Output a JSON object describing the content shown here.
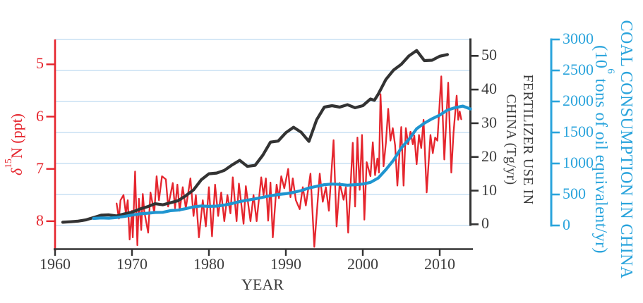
{
  "figure": {
    "x_axis": {
      "title": "YEAR",
      "ticks": [
        "1960",
        "1970",
        "1980",
        "1990",
        "2000",
        "2010"
      ]
    },
    "left_axis": {
      "title_delta": "δ",
      "title_sup": "15",
      "title_rest": "N (ppt)",
      "ticks": [
        "5",
        "6",
        "7",
        "8"
      ]
    },
    "fertilizer_axis": {
      "title_line1": "FERTILIZER USE IN",
      "title_line2": "CHINA (Tg/yr)",
      "ticks": [
        "50",
        "40",
        "30",
        "20",
        "10",
        "0"
      ]
    },
    "coal_axis": {
      "title_line1": "COAL CONSUMPTION IN CHINA",
      "title_line2_prefix": "(10",
      "title_line2_sup": "6",
      "title_line2_suffix": " tons of oil equivalent/yr)",
      "ticks": [
        "3000",
        "2500",
        "2000",
        "1500",
        "1000",
        "500",
        "0"
      ]
    },
    "colors": {
      "red": "#e5252d",
      "dark_line": "#333333",
      "text_dark": "#3d3d3d",
      "blue_line": "#1f95d0",
      "blue_axis": "#2aa4dc",
      "gridline": "#c8e1f3",
      "background": "#ffffff"
    }
  },
  "chart_data": {
    "type": "line",
    "title": "",
    "xlabel": "YEAR",
    "x_range": [
      1960,
      2014
    ],
    "grid": "horizontal light-blue lines at coal-axis tick levels",
    "legend": "none (series identified by colored axes)",
    "axes": {
      "x": {
        "ticks": [
          1960,
          1970,
          1980,
          1990,
          2000,
          2010
        ]
      },
      "left": {
        "label": "δ15N (ppt)",
        "ticks": [
          5,
          6,
          7,
          8
        ],
        "range": [
          4.5,
          8.6
        ],
        "inverted": true,
        "color": "#e5252d"
      },
      "fertilizer": {
        "label": "FERTILIZER USE IN CHINA (Tg/yr)",
        "ticks": [
          50,
          40,
          30,
          20,
          10,
          0
        ],
        "range": [
          0,
          55
        ],
        "color": "#333333"
      },
      "coal": {
        "label": "COAL CONSUMPTION IN CHINA (10^6 tons of oil equivalent/yr)",
        "ticks": [
          3000,
          2500,
          2000,
          1500,
          1000,
          500,
          0
        ],
        "range": [
          0,
          3000
        ],
        "color": "#2aa4dc"
      }
    },
    "series": [
      {
        "name": "delta15N",
        "axis": "left",
        "units": "ppt",
        "color": "#e5252d",
        "width": 2.3,
        "points": [
          [
            1968.0,
            7.66
          ],
          [
            1968.3,
            7.95
          ],
          [
            1968.5,
            7.6
          ],
          [
            1968.9,
            7.5
          ],
          [
            1969.2,
            7.85
          ],
          [
            1969.45,
            7.6
          ],
          [
            1969.7,
            8.35
          ],
          [
            1970.0,
            7.8
          ],
          [
            1970.1,
            8.31
          ],
          [
            1970.4,
            7.05
          ],
          [
            1970.7,
            8.46
          ],
          [
            1970.9,
            7.57
          ],
          [
            1971.2,
            8.17
          ],
          [
            1971.4,
            7.48
          ],
          [
            1971.6,
            7.81
          ],
          [
            1972.1,
            8.22
          ],
          [
            1972.4,
            7.45
          ],
          [
            1972.9,
            7.84
          ],
          [
            1973.2,
            7.14
          ],
          [
            1973.5,
            7.6
          ],
          [
            1973.9,
            7.14
          ],
          [
            1974.4,
            7.2
          ],
          [
            1974.7,
            7.72
          ],
          [
            1975.3,
            7.27
          ],
          [
            1975.6,
            7.75
          ],
          [
            1975.9,
            7.3
          ],
          [
            1976.2,
            7.8
          ],
          [
            1976.6,
            7.35
          ],
          [
            1977.0,
            7.75
          ],
          [
            1977.6,
            7.18
          ],
          [
            1978.0,
            7.9
          ],
          [
            1978.3,
            7.5
          ],
          [
            1978.7,
            8.31
          ],
          [
            1979.2,
            7.6
          ],
          [
            1979.6,
            8.1
          ],
          [
            1980.0,
            7.35
          ],
          [
            1980.4,
            8.29
          ],
          [
            1980.8,
            7.3
          ],
          [
            1981.2,
            7.9
          ],
          [
            1981.6,
            7.45
          ],
          [
            1982.0,
            8.0
          ],
          [
            1982.4,
            7.5
          ],
          [
            1982.8,
            7.85
          ],
          [
            1983.1,
            7.16
          ],
          [
            1983.6,
            8.0
          ],
          [
            1983.9,
            7.28
          ],
          [
            1984.5,
            8.05
          ],
          [
            1984.8,
            7.33
          ],
          [
            1985.4,
            8.0
          ],
          [
            1985.8,
            7.5
          ],
          [
            1986.2,
            8.0
          ],
          [
            1986.8,
            7.16
          ],
          [
            1987.1,
            7.5
          ],
          [
            1987.4,
            7.18
          ],
          [
            1987.7,
            7.99
          ],
          [
            1988.0,
            7.26
          ],
          [
            1988.3,
            8.31
          ],
          [
            1988.8,
            7.3
          ],
          [
            1989.1,
            7.56
          ],
          [
            1989.4,
            7.14
          ],
          [
            1989.8,
            7.37
          ],
          [
            1990.3,
            7.0
          ],
          [
            1990.6,
            7.54
          ],
          [
            1990.9,
            7.18
          ],
          [
            1991.3,
            7.6
          ],
          [
            1991.8,
            7.77
          ],
          [
            1992.2,
            7.35
          ],
          [
            1992.6,
            7.7
          ],
          [
            1993.2,
            7.09
          ],
          [
            1993.7,
            8.49
          ],
          [
            1994.4,
            7.09
          ],
          [
            1994.8,
            7.63
          ],
          [
            1995.2,
            7.35
          ],
          [
            1995.6,
            7.8
          ],
          [
            1996.2,
            6.45
          ],
          [
            1996.6,
            8.1
          ],
          [
            1997.0,
            7.27
          ],
          [
            1997.5,
            7.59
          ],
          [
            1997.8,
            7.35
          ],
          [
            1998.1,
            8.22
          ],
          [
            1998.7,
            6.5
          ],
          [
            1999.0,
            7.72
          ],
          [
            1999.3,
            6.4
          ],
          [
            1999.6,
            7.4
          ],
          [
            1999.9,
            6.35
          ],
          [
            2000.2,
            7.97
          ],
          [
            2000.5,
            6.87
          ],
          [
            2001.0,
            7.14
          ],
          [
            2001.3,
            6.49
          ],
          [
            2001.6,
            7.12
          ],
          [
            2001.9,
            6.8
          ],
          [
            2002.1,
            7.07
          ],
          [
            2002.3,
            5.57
          ],
          [
            2002.7,
            6.95
          ],
          [
            2003.0,
            6.51
          ],
          [
            2003.3,
            5.85
          ],
          [
            2003.6,
            6.46
          ],
          [
            2003.9,
            6.22
          ],
          [
            2004.2,
            6.55
          ],
          [
            2004.5,
            7.32
          ],
          [
            2005.0,
            6.2
          ],
          [
            2005.3,
            7.32
          ],
          [
            2005.6,
            6.22
          ],
          [
            2005.9,
            6.53
          ],
          [
            2006.2,
            6.29
          ],
          [
            2006.5,
            6.53
          ],
          [
            2006.7,
            6.36
          ],
          [
            2007.0,
            6.91
          ],
          [
            2007.3,
            6.35
          ],
          [
            2007.6,
            6.6
          ],
          [
            2007.9,
            6.06
          ],
          [
            2008.3,
            7.45
          ],
          [
            2008.8,
            6.35
          ],
          [
            2009.1,
            6.7
          ],
          [
            2009.4,
            6.4
          ],
          [
            2009.7,
            6.46
          ],
          [
            2010.2,
            5.23
          ],
          [
            2010.6,
            6.82
          ],
          [
            2011.1,
            5.35
          ],
          [
            2011.5,
            7.07
          ],
          [
            2011.8,
            6.3
          ],
          [
            2012.2,
            5.6
          ],
          [
            2012.4,
            6.06
          ],
          [
            2012.6,
            5.9
          ],
          [
            2012.8,
            6.05
          ]
        ]
      },
      {
        "name": "fertilizer_use",
        "axis": "fertilizer",
        "units": "Tg/yr",
        "color": "#333333",
        "width": 4.2,
        "points": [
          [
            1961,
            0.6
          ],
          [
            1962,
            0.75
          ],
          [
            1963,
            0.95
          ],
          [
            1964,
            1.3
          ],
          [
            1965,
            2.0
          ],
          [
            1966,
            2.7
          ],
          [
            1967,
            2.8
          ],
          [
            1968,
            2.5
          ],
          [
            1969,
            3.1
          ],
          [
            1970,
            3.6
          ],
          [
            1971,
            4.5
          ],
          [
            1972,
            5.2
          ],
          [
            1973,
            6.1
          ],
          [
            1974,
            5.8
          ],
          [
            1975,
            6.4
          ],
          [
            1976,
            7.0
          ],
          [
            1977,
            8.5
          ],
          [
            1978,
            10.2
          ],
          [
            1979,
            13.2
          ],
          [
            1980,
            15.0
          ],
          [
            1981,
            15.2
          ],
          [
            1982,
            16.0
          ],
          [
            1983,
            17.6
          ],
          [
            1984,
            19.0
          ],
          [
            1985,
            17.2
          ],
          [
            1986,
            17.5
          ],
          [
            1987,
            20.5
          ],
          [
            1988,
            24.4
          ],
          [
            1989,
            24.7
          ],
          [
            1990,
            27.2
          ],
          [
            1991,
            28.8
          ],
          [
            1992,
            27.3
          ],
          [
            1993,
            24.6
          ],
          [
            1994,
            31.0
          ],
          [
            1995,
            34.8
          ],
          [
            1996,
            35.2
          ],
          [
            1997,
            34.8
          ],
          [
            1998,
            35.5
          ],
          [
            1999,
            34.6
          ],
          [
            2000,
            35.2
          ],
          [
            2001,
            37.2
          ],
          [
            2001.5,
            36.8
          ],
          [
            2002,
            38.6
          ],
          [
            2003,
            43.0
          ],
          [
            2004,
            45.8
          ],
          [
            2005,
            47.5
          ],
          [
            2006,
            50.0
          ],
          [
            2007,
            51.6
          ],
          [
            2008,
            48.6
          ],
          [
            2009,
            48.7
          ],
          [
            2010,
            49.9
          ],
          [
            2011,
            50.4
          ]
        ]
      },
      {
        "name": "coal_consumption",
        "axis": "coal",
        "units": "10^6 tons of oil equivalent/yr",
        "color": "#1f95d0",
        "width": 4.2,
        "points": [
          [
            1965,
            114
          ],
          [
            1966,
            122
          ],
          [
            1967,
            118
          ],
          [
            1968,
            128
          ],
          [
            1969,
            145
          ],
          [
            1970,
            168
          ],
          [
            1971,
            188
          ],
          [
            1972,
            198
          ],
          [
            1973,
            210
          ],
          [
            1974,
            212
          ],
          [
            1975,
            240
          ],
          [
            1976,
            248
          ],
          [
            1977,
            272
          ],
          [
            1978,
            300
          ],
          [
            1979,
            315
          ],
          [
            1980,
            308
          ],
          [
            1981,
            312
          ],
          [
            1982,
            330
          ],
          [
            1983,
            355
          ],
          [
            1984,
            385
          ],
          [
            1985,
            408
          ],
          [
            1986,
            430
          ],
          [
            1987,
            455
          ],
          [
            1988,
            480
          ],
          [
            1989,
            500
          ],
          [
            1990,
            512
          ],
          [
            1991,
            535
          ],
          [
            1992,
            562
          ],
          [
            1993,
            605
          ],
          [
            1994,
            632
          ],
          [
            1995,
            658
          ],
          [
            1996,
            668
          ],
          [
            1997,
            662
          ],
          [
            1998,
            650
          ],
          [
            1999,
            658
          ],
          [
            2000,
            668
          ],
          [
            2001,
            695
          ],
          [
            2002,
            765
          ],
          [
            2003,
            900
          ],
          [
            2004,
            1055
          ],
          [
            2005,
            1250
          ],
          [
            2006,
            1390
          ],
          [
            2007,
            1560
          ],
          [
            2008,
            1650
          ],
          [
            2009,
            1720
          ],
          [
            2010,
            1780
          ],
          [
            2011,
            1860
          ],
          [
            2012,
            1900
          ],
          [
            2013,
            1925
          ],
          [
            2014,
            1880
          ]
        ]
      }
    ]
  }
}
